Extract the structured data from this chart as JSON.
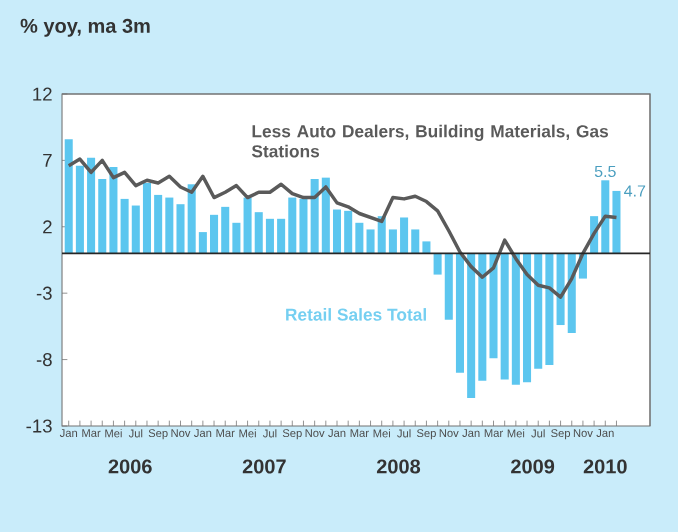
{
  "chart_data": {
    "type": "bar",
    "title": "% yoy, ma 3m",
    "categories": [
      "Jan",
      null,
      "Mar",
      null,
      "Mei",
      null,
      "Jul",
      null,
      "Sep",
      null,
      "Nov",
      null,
      "Jan",
      null,
      "Mar",
      null,
      "Mei",
      null,
      "Jul",
      null,
      "Sep",
      null,
      "Nov",
      null,
      "Jan",
      null,
      "Mar",
      null,
      "Mei",
      null,
      "Jul",
      null,
      "Sep",
      null,
      "Nov",
      null,
      "Jan",
      null,
      "Mar",
      null,
      "Mei",
      null,
      "Jul",
      null,
      "Sep",
      null,
      "Nov",
      null,
      "Jan",
      null
    ],
    "annotations": [
      "2006",
      "2007",
      "2008",
      "2009",
      "2010"
    ],
    "series": [
      {
        "name": "Retail Sales Total",
        "color": "#5cc6ef",
        "values": [
          8.6,
          6.6,
          7.2,
          5.6,
          6.5,
          4.1,
          3.6,
          5.3,
          4.4,
          4.2,
          3.7,
          5.2,
          1.6,
          2.9,
          3.5,
          2.3,
          4.2,
          3.1,
          2.6,
          2.6,
          4.2,
          4.1,
          5.6,
          5.7,
          3.3,
          3.2,
          2.3,
          1.8,
          2.8,
          1.8,
          2.7,
          1.8,
          0.9,
          -1.6,
          -5,
          -9,
          -10.9,
          -9.6,
          -7.9,
          -9.5,
          -9.9,
          -9.7,
          -8.7,
          -8.4,
          -5.4,
          -6,
          -1.9,
          2.8,
          5.5,
          4.7
        ],
        "value_labels": [
          null,
          null,
          null,
          null,
          null,
          null,
          null,
          null,
          null,
          null,
          null,
          null,
          null,
          null,
          null,
          null,
          null,
          null,
          null,
          null,
          null,
          null,
          null,
          null,
          null,
          null,
          null,
          null,
          null,
          null,
          null,
          null,
          null,
          null,
          null,
          null,
          null,
          null,
          null,
          null,
          null,
          null,
          null,
          null,
          null,
          null,
          null,
          null,
          "5.5",
          "4.7"
        ]
      },
      {
        "name": "Less Auto Dealers, Building Materials, Gas Stations",
        "type": "line",
        "color": "#5a5a5a",
        "values": [
          6.6,
          7.1,
          6.1,
          7.0,
          5.7,
          6.1,
          5.1,
          5.5,
          5.3,
          5.8,
          5.0,
          4.6,
          5.8,
          4.2,
          4.6,
          5.1,
          4.2,
          4.6,
          4.6,
          5.2,
          4.5,
          4.2,
          4.2,
          5.0,
          3.8,
          3.5,
          3.0,
          2.7,
          2.4,
          4.2,
          4.1,
          4.3,
          3.9,
          3.2,
          1.7,
          0.1,
          -1.0,
          -1.8,
          -1.1,
          1.0,
          -0.4,
          -1.6,
          -2.4,
          -2.6,
          -3.3,
          -1.9,
          0,
          1.5,
          2.8,
          2.7
        ]
      }
    ],
    "ylim": [
      -13,
      12
    ],
    "yticks": [
      12,
      7,
      2,
      -3,
      -8,
      -13
    ],
    "grid": false
  }
}
